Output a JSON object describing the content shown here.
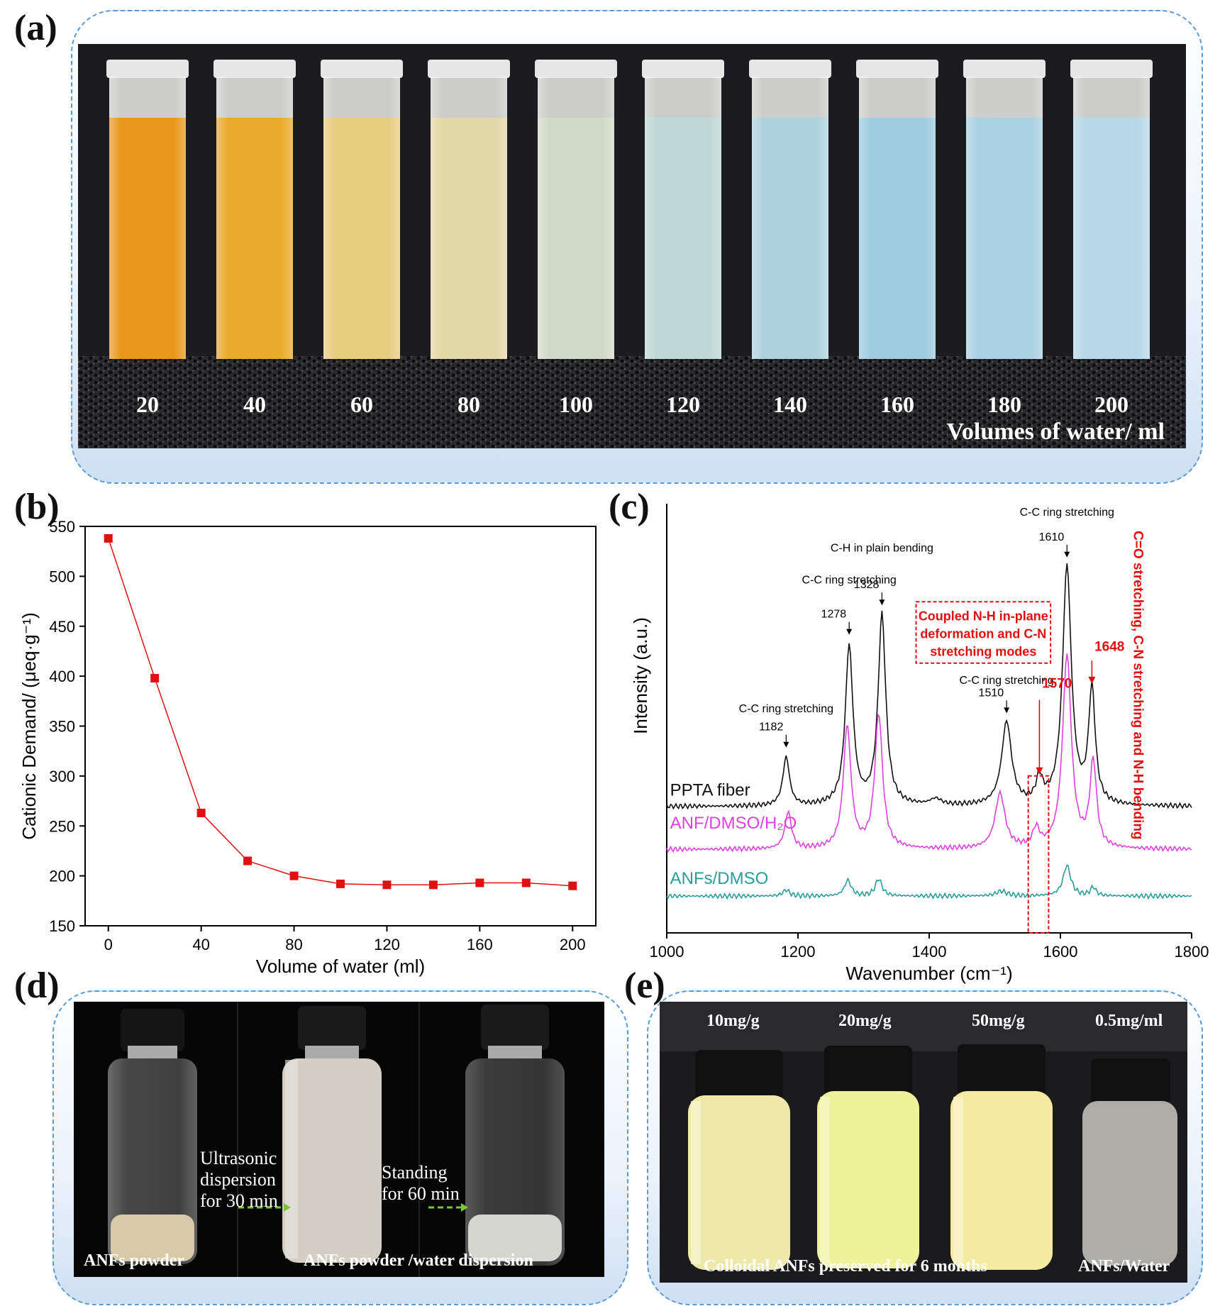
{
  "panels": {
    "a": {
      "letter": "(a)",
      "tube_labels": [
        "20",
        "40",
        "60",
        "80",
        "100",
        "120",
        "140",
        "160",
        "180",
        "200"
      ],
      "caption": "Volumes of water/ ml",
      "tube_colors": [
        "#e79410",
        "#e9a520",
        "#e7c978",
        "#e0d6a2",
        "#cfd8c4",
        "#bcd6d3",
        "#a9d0dc",
        "#98c9dc",
        "#a5cfe0",
        "#b3d6e6"
      ]
    },
    "b": {
      "letter": "(b)"
    },
    "c": {
      "letter": "(c)"
    },
    "d": {
      "letter": "(d)",
      "arrow1_line1": "Ultrasonic",
      "arrow1_line2": "dispersion",
      "arrow1_line3": "for 30 min",
      "arrow2_line1": "Standing",
      "arrow2_line2": "for 60 min",
      "label_left": "ANFs powder",
      "label_right": "ANFs powder /water dispersion"
    },
    "e": {
      "letter": "(e)",
      "conc": [
        "10mg/g",
        "20mg/g",
        "50mg/g",
        "0.5mg/ml"
      ],
      "caption_left": "Colloidal ANFs preserved for 6 months",
      "caption_right": "ANFs/Water"
    }
  },
  "chart_data": [
    {
      "type": "line",
      "panel": "b",
      "x": [
        0,
        20,
        40,
        60,
        80,
        100,
        120,
        140,
        160,
        180,
        200
      ],
      "series": [
        {
          "values": [
            538,
            398,
            263,
            215,
            200,
            192,
            191,
            191,
            193,
            193,
            190
          ],
          "color": "#e01010",
          "marker": "square"
        }
      ],
      "xlabel": "Volume of water (ml)",
      "ylabel": "Cationic Demand/ (μeq·g⁻¹)",
      "xlim": [
        -10,
        210
      ],
      "ylim": [
        150,
        550
      ],
      "xticks": [
        0,
        40,
        80,
        120,
        160,
        200
      ],
      "yticks": [
        150,
        200,
        250,
        300,
        350,
        400,
        450,
        500,
        550
      ]
    },
    {
      "type": "line",
      "panel": "c",
      "xlabel": "Wavenumber (cm⁻¹)",
      "ylabel": "Intensity (a.u.)",
      "xlim": [
        1000,
        1800
      ],
      "xticks": [
        1000,
        1200,
        1400,
        1600,
        1800
      ],
      "series": [
        {
          "name": "PPTA fiber",
          "color": "#111111",
          "baseline": 0.73,
          "peaks": [
            [
              1182,
              0.4,
              6
            ],
            [
              1278,
              1.3,
              7
            ],
            [
              1328,
              1.55,
              7
            ],
            [
              1410,
              0.05,
              10
            ],
            [
              1518,
              0.68,
              9
            ],
            [
              1568,
              0.2,
              6
            ],
            [
              1610,
              1.95,
              8
            ],
            [
              1648,
              0.93,
              6
            ]
          ]
        },
        {
          "name": "ANF/DMSO/H₂O",
          "color": "#e040e0",
          "baseline": 0.38,
          "peaks": [
            [
              1185,
              0.3,
              6
            ],
            [
              1275,
              1.0,
              7
            ],
            [
              1323,
              1.1,
              7
            ],
            [
              1508,
              0.45,
              9
            ],
            [
              1563,
              0.15,
              6
            ],
            [
              1610,
              1.58,
              8
            ],
            [
              1650,
              0.7,
              6
            ]
          ]
        },
        {
          "name": "ANFs/DMSO",
          "color": "#2a9d9a",
          "baseline": 0.0,
          "peaks": [
            [
              1182,
              0.05,
              6
            ],
            [
              1276,
              0.13,
              6
            ],
            [
              1323,
              0.14,
              6
            ],
            [
              1510,
              0.04,
              10
            ],
            [
              1610,
              0.25,
              7
            ],
            [
              1650,
              0.07,
              5
            ]
          ]
        }
      ],
      "annotations": [
        {
          "text": "C-C ring stretching",
          "value": "1182"
        },
        {
          "text": "C-C ring stretching",
          "value": "1278"
        },
        {
          "text": "C-H in plain bending",
          "value": "1328"
        },
        {
          "text": "C-C ring stretching",
          "value": "1510"
        },
        {
          "text": "C-C ring stretching",
          "value": "1610"
        }
      ],
      "red_box_lines": [
        "Coupled N-H in-plane",
        "deformation and C-N",
        "stretching modes"
      ],
      "red_peaks": [
        "1570",
        "1648"
      ],
      "vertical_text": "C=O stretching, C-N stretching and N-H bending"
    }
  ]
}
